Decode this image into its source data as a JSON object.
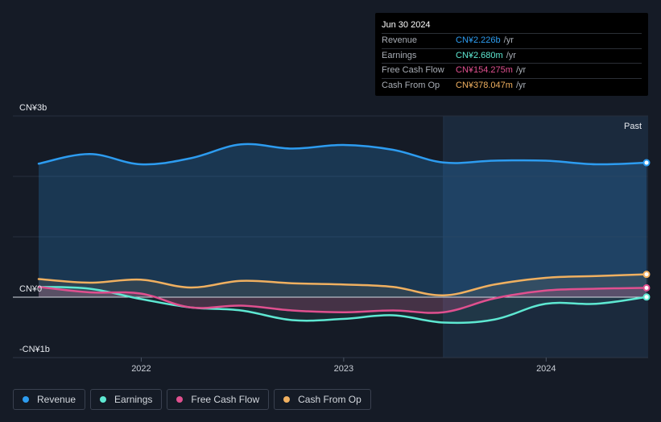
{
  "tooltip": {
    "date": "Jun 30 2024",
    "rows": [
      {
        "label": "Revenue",
        "value": "CN¥2.226b",
        "unit": "/yr",
        "color": "#2d9cf0"
      },
      {
        "label": "Earnings",
        "value": "CN¥2.680m",
        "unit": "/yr",
        "color": "#5ee8d2"
      },
      {
        "label": "Free Cash Flow",
        "value": "CN¥154.275m",
        "unit": "/yr",
        "color": "#e0508f"
      },
      {
        "label": "Cash From Op",
        "value": "CN¥378.047m",
        "unit": "/yr",
        "color": "#f0b060"
      }
    ]
  },
  "legend": [
    {
      "label": "Revenue",
      "color": "#2d9cf0"
    },
    {
      "label": "Earnings",
      "color": "#5ee8d2"
    },
    {
      "label": "Free Cash Flow",
      "color": "#e0508f"
    },
    {
      "label": "Cash From Op",
      "color": "#f0b060"
    }
  ],
  "chart_data": {
    "type": "line",
    "ylim": [
      -1.0,
      3.0
    ],
    "y_unit": "CN¥b",
    "y_tick_labels": [
      {
        "value": 3.0,
        "label": "CN¥3b"
      },
      {
        "value": 0.0,
        "label": "CN¥0"
      },
      {
        "value": -1.0,
        "label": "-CN¥1b"
      }
    ],
    "x_tick_labels": [
      {
        "x": "2022-01-01",
        "label": "2022"
      },
      {
        "x": "2023-01-01",
        "label": "2023"
      },
      {
        "x": "2024-01-01",
        "label": "2024"
      }
    ],
    "xlim": [
      "2021-06-30",
      "2024-06-30"
    ],
    "past_region_start": "2023-06-30",
    "past_label": "Past",
    "series": [
      {
        "name": "Revenue",
        "color": "#2d9cf0",
        "points": [
          [
            "2021-06-30",
            2.21
          ],
          [
            "2021-09-30",
            2.37
          ],
          [
            "2021-12-31",
            2.2
          ],
          [
            "2022-03-31",
            2.3
          ],
          [
            "2022-06-30",
            2.53
          ],
          [
            "2022-09-30",
            2.46
          ],
          [
            "2022-12-31",
            2.52
          ],
          [
            "2023-03-31",
            2.44
          ],
          [
            "2023-06-30",
            2.23
          ],
          [
            "2023-09-30",
            2.26
          ],
          [
            "2023-12-31",
            2.26
          ],
          [
            "2024-03-31",
            2.2
          ],
          [
            "2024-06-30",
            2.226
          ]
        ]
      },
      {
        "name": "Earnings",
        "color": "#5ee8d2",
        "points": [
          [
            "2021-06-30",
            0.17
          ],
          [
            "2021-09-30",
            0.14
          ],
          [
            "2021-12-31",
            -0.03
          ],
          [
            "2022-03-31",
            -0.17
          ],
          [
            "2022-06-30",
            -0.22
          ],
          [
            "2022-09-30",
            -0.38
          ],
          [
            "2022-12-31",
            -0.36
          ],
          [
            "2023-03-31",
            -0.3
          ],
          [
            "2023-06-30",
            -0.42
          ],
          [
            "2023-09-30",
            -0.37
          ],
          [
            "2023-12-31",
            -0.11
          ],
          [
            "2024-03-31",
            -0.11
          ],
          [
            "2024-06-30",
            0.00268
          ]
        ]
      },
      {
        "name": "Free Cash Flow",
        "color": "#e0508f",
        "points": [
          [
            "2021-06-30",
            0.17
          ],
          [
            "2021-09-30",
            0.08
          ],
          [
            "2021-12-31",
            0.06
          ],
          [
            "2022-03-31",
            -0.17
          ],
          [
            "2022-06-30",
            -0.14
          ],
          [
            "2022-09-30",
            -0.22
          ],
          [
            "2022-12-31",
            -0.25
          ],
          [
            "2023-03-31",
            -0.22
          ],
          [
            "2023-06-30",
            -0.25
          ],
          [
            "2023-09-30",
            -0.02
          ],
          [
            "2023-12-31",
            0.11
          ],
          [
            "2024-03-31",
            0.14
          ],
          [
            "2024-06-30",
            0.154275
          ]
        ]
      },
      {
        "name": "Cash From Op",
        "color": "#f0b060",
        "points": [
          [
            "2021-06-30",
            0.3
          ],
          [
            "2021-09-30",
            0.24
          ],
          [
            "2021-12-31",
            0.29
          ],
          [
            "2022-03-31",
            0.16
          ],
          [
            "2022-06-30",
            0.27
          ],
          [
            "2022-09-30",
            0.23
          ],
          [
            "2022-12-31",
            0.21
          ],
          [
            "2023-03-31",
            0.17
          ],
          [
            "2023-06-30",
            0.03
          ],
          [
            "2023-09-30",
            0.21
          ],
          [
            "2023-12-31",
            0.32
          ],
          [
            "2024-03-31",
            0.35
          ],
          [
            "2024-06-30",
            0.378047
          ]
        ]
      }
    ]
  }
}
